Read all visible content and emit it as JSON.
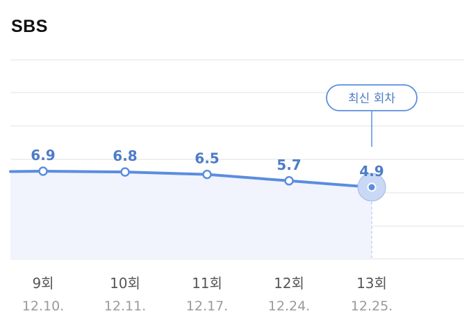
{
  "chart_data": {
    "type": "line",
    "title": "SBS",
    "categories": [
      "9회",
      "10회",
      "11회",
      "12회",
      "13회"
    ],
    "dates": [
      "12.10.",
      "12.11.",
      "12.17.",
      "12.24.",
      "12.25."
    ],
    "values": [
      6.9,
      6.8,
      6.5,
      5.7,
      4.9
    ],
    "value_labels": [
      "6.9",
      "6.8",
      "6.5",
      "5.7",
      "4.9"
    ],
    "latest_badge": "최신 회차",
    "grid": true,
    "colors": {
      "line": "#5b8ddf",
      "label": "#4d7cc8",
      "fill": "#f1f4fd",
      "grid": "#e8e8e8",
      "axis_text": "#555555",
      "date_text": "#9a9a9a"
    }
  }
}
